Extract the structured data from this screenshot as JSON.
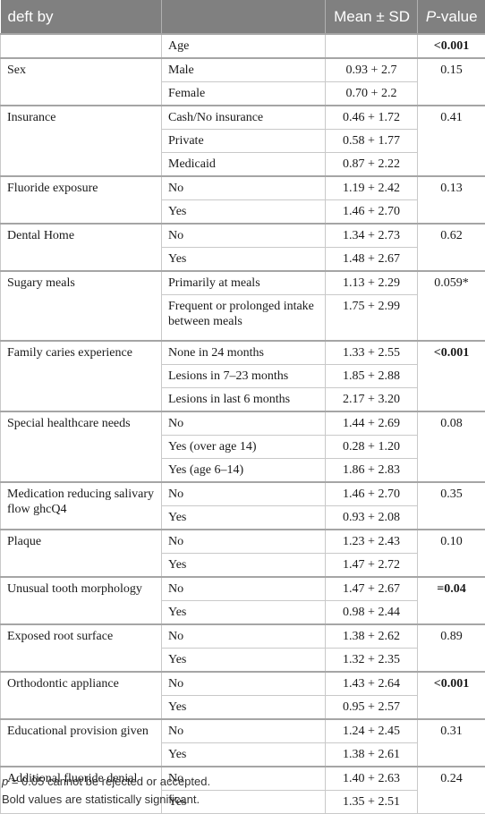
{
  "header": {
    "col1": "deft by",
    "col2": "",
    "col3": "Mean ± SD",
    "col4_italic": "P",
    "col4_rest": "-value"
  },
  "rows": [
    {
      "variable": "",
      "category": "Age",
      "mean": "",
      "pvalue": "<0.001",
      "pbold": true
    },
    {
      "variable": "Sex",
      "category": "Male",
      "mean": "0.93 + 2.7",
      "pvalue": "0.15",
      "pbold": false
    },
    {
      "variable": "",
      "category": "Female",
      "mean": "0.70 + 2.2",
      "pvalue": "",
      "pbold": false
    },
    {
      "variable": "Insurance",
      "category": "Cash/No insurance",
      "mean": "0.46 + 1.72",
      "pvalue": "0.41",
      "pbold": false
    },
    {
      "variable": "",
      "category": "Private",
      "mean": "0.58 + 1.77",
      "pvalue": "",
      "pbold": false
    },
    {
      "variable": "",
      "category": "Medicaid",
      "mean": "0.87 + 2.22",
      "pvalue": "",
      "pbold": false
    },
    {
      "variable": "Fluoride exposure",
      "category": "No",
      "mean": "1.19 + 2.42",
      "pvalue": "0.13",
      "pbold": false
    },
    {
      "variable": "",
      "category": "Yes",
      "mean": "1.46 + 2.70",
      "pvalue": "",
      "pbold": false
    },
    {
      "variable": "Dental Home",
      "category": "No",
      "mean": "1.34 + 2.73",
      "pvalue": "0.62",
      "pbold": false
    },
    {
      "variable": "",
      "category": "Yes",
      "mean": "1.48 + 2.67",
      "pvalue": "",
      "pbold": false
    },
    {
      "variable": "Sugary meals",
      "category": "Primarily at meals",
      "mean": "1.13 + 2.29",
      "pvalue": "0.059*",
      "pbold": false
    },
    {
      "variable": "",
      "category": "Frequent or prolonged intake between meals",
      "mean": "1.75 + 2.99",
      "pvalue": "",
      "pbold": false
    },
    {
      "variable": "Family caries experience",
      "category": "None in 24 months",
      "mean": "1.33 + 2.55",
      "pvalue": "<0.001",
      "pbold": true
    },
    {
      "variable": "",
      "category": "Lesions in 7–23 months",
      "mean": "1.85 + 2.88",
      "pvalue": "",
      "pbold": false
    },
    {
      "variable": "",
      "category": "Lesions in last 6 months",
      "mean": "2.17 + 3.20",
      "pvalue": "",
      "pbold": false
    },
    {
      "variable": "Special healthcare needs",
      "category": "No",
      "mean": "1.44 + 2.69",
      "pvalue": "0.08",
      "pbold": false
    },
    {
      "variable": "",
      "category": "Yes (over age 14)",
      "mean": "0.28 + 1.20",
      "pvalue": "",
      "pbold": false
    },
    {
      "variable": "",
      "category": "Yes (age 6–14)",
      "mean": "1.86 + 2.83",
      "pvalue": "",
      "pbold": false
    },
    {
      "variable": "Medication reducing salivary flow ghcQ4",
      "category": "No",
      "mean": "1.46 + 2.70",
      "pvalue": "0.35",
      "pbold": false
    },
    {
      "variable": "",
      "category": "Yes",
      "mean": "0.93 + 2.08",
      "pvalue": "",
      "pbold": false
    },
    {
      "variable": "Plaque",
      "category": "No",
      "mean": "1.23 + 2.43",
      "pvalue": "0.10",
      "pbold": false
    },
    {
      "variable": "",
      "category": "Yes",
      "mean": "1.47 + 2.72",
      "pvalue": "",
      "pbold": false
    },
    {
      "variable": "Unusual tooth morphology",
      "category": "No",
      "mean": "1.47 + 2.67",
      "pvalue": "=0.04",
      "pbold": true
    },
    {
      "variable": "",
      "category": "Yes",
      "mean": "0.98 + 2.44",
      "pvalue": "",
      "pbold": false
    },
    {
      "variable": "Exposed root surface",
      "category": "No",
      "mean": "1.38 + 2.62",
      "pvalue": "0.89",
      "pbold": false
    },
    {
      "variable": "",
      "category": "Yes",
      "mean": "1.32 + 2.35",
      "pvalue": "",
      "pbold": false
    },
    {
      "variable": "Orthodontic appliance",
      "category": "No",
      "mean": "1.43 + 2.64",
      "pvalue": "<0.001",
      "pbold": true
    },
    {
      "variable": "",
      "category": "Yes",
      "mean": "0.95 + 2.57",
      "pvalue": "",
      "pbold": false
    },
    {
      "variable": "Educational provision given",
      "category": "No",
      "mean": "1.24 + 2.45",
      "pvalue": "0.31",
      "pbold": false
    },
    {
      "variable": "",
      "category": "Yes",
      "mean": "1.38 + 2.61",
      "pvalue": "",
      "pbold": false
    },
    {
      "variable": "Additional fluoride denial",
      "category": "No",
      "mean": "1.40 + 2.63",
      "pvalue": "0.24",
      "pbold": false
    },
    {
      "variable": "",
      "category": "Yes",
      "mean": "1.35 + 2.51",
      "pvalue": "",
      "pbold": false
    }
  ],
  "footnotes": {
    "note1_italic": "p",
    "note1_rest": " = 0.05 cannot be rejected or accepted.",
    "note2": "Bold values are statistically significant."
  }
}
